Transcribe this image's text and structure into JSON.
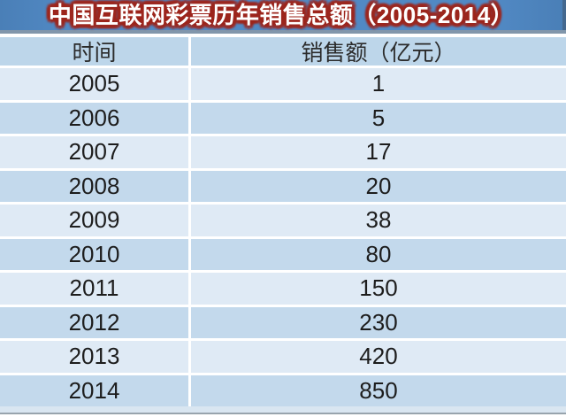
{
  "title": "中国互联网彩票历年销售总额（2005-2014）",
  "table": {
    "columns": [
      "时间",
      "销售额（亿元）"
    ],
    "rows": [
      {
        "year": "2005",
        "value": "1"
      },
      {
        "year": "2006",
        "value": "5"
      },
      {
        "year": "2007",
        "value": "17"
      },
      {
        "year": "2008",
        "value": "20"
      },
      {
        "year": "2009",
        "value": "38"
      },
      {
        "year": "2010",
        "value": "80"
      },
      {
        "year": "2011",
        "value": "150"
      },
      {
        "year": "2012",
        "value": "230"
      },
      {
        "year": "2013",
        "value": "420"
      },
      {
        "year": "2014",
        "value": "850"
      }
    ]
  },
  "colors": {
    "title_bar_blue": "#5189c4",
    "title_text_glow_red": "#9d261d",
    "header_bg": "#bdd6ea",
    "row_light": "#dfeaf5",
    "row_dark": "#c3d9ec",
    "text": "#1d1d1d",
    "divider_white": "#ffffff"
  },
  "chart_data": {
    "type": "table",
    "title": "中国互联网彩票历年销售总额（2005-2014）",
    "columns": [
      "时间",
      "销售额（亿元）"
    ],
    "categories": [
      "2005",
      "2006",
      "2007",
      "2008",
      "2009",
      "2010",
      "2011",
      "2012",
      "2013",
      "2014"
    ],
    "values": [
      1,
      5,
      17,
      20,
      38,
      80,
      150,
      230,
      420,
      850
    ],
    "xlabel": "时间",
    "ylabel": "销售额（亿元）"
  }
}
